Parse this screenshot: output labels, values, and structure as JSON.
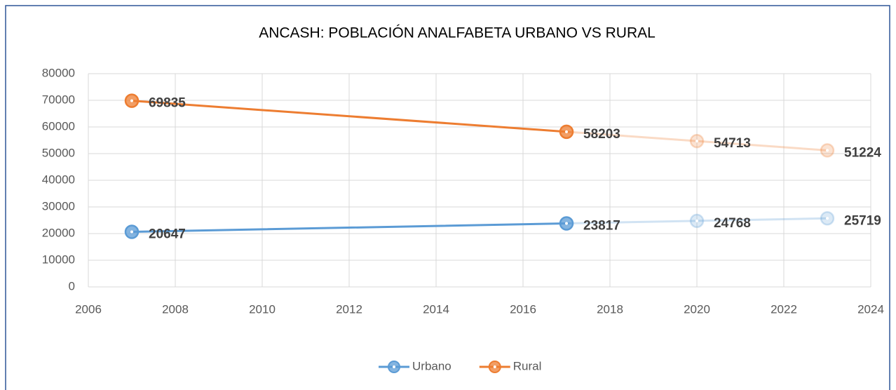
{
  "chart_data": {
    "type": "line",
    "title": "ANCASH: POBLACIÓN ANALFABETA URBANO VS RURAL",
    "x": [
      2007,
      2017,
      2020,
      2023
    ],
    "projected": [
      false,
      false,
      true,
      true
    ],
    "series": [
      {
        "name": "Urbano",
        "color": "#5b9bd5",
        "values": [
          20647,
          23817,
          24768,
          25719
        ]
      },
      {
        "name": "Rural",
        "color": "#ed7d31",
        "values": [
          69835,
          58203,
          54713,
          51224
        ]
      }
    ],
    "xlim": [
      2006,
      2024
    ],
    "xticks": [
      2006,
      2008,
      2010,
      2012,
      2014,
      2016,
      2018,
      2020,
      2022,
      2024
    ],
    "ylim": [
      0,
      80000
    ],
    "yticks": [
      0,
      10000,
      20000,
      30000,
      40000,
      50000,
      60000,
      70000,
      80000
    ],
    "grid": true,
    "legend": "bottom"
  }
}
